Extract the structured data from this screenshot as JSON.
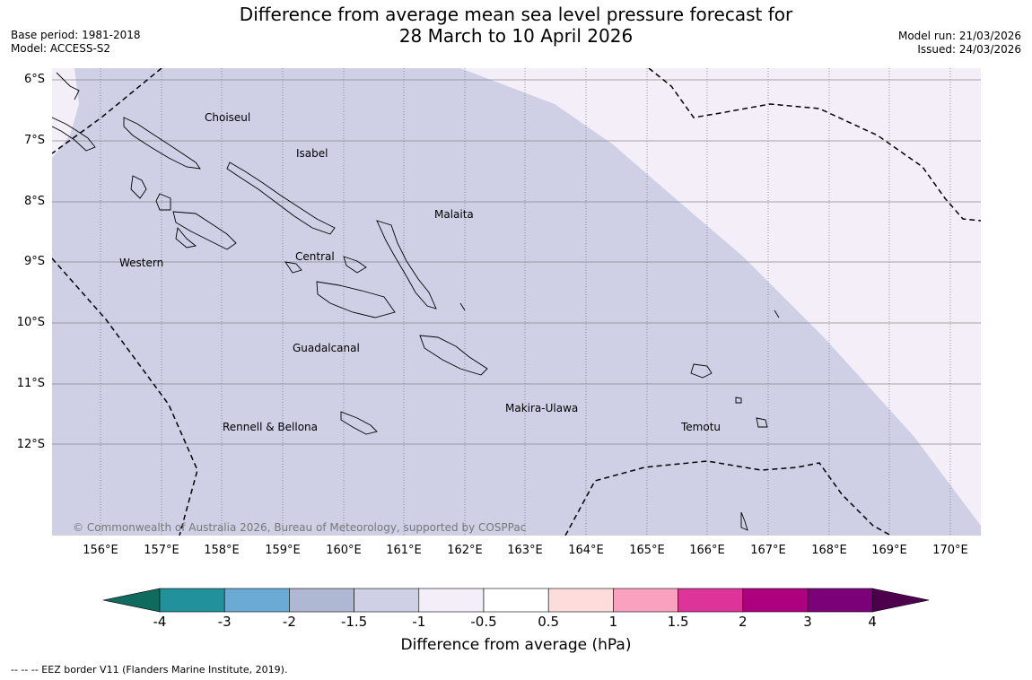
{
  "title_line1": "Difference from average mean sea level pressure forecast for",
  "title_line2": "28 March to 10 April 2026",
  "base_period": "Base period: 1981-2018",
  "model": "Model: ACCESS-S2",
  "model_run": "Model run: 21/03/2026",
  "issued": "Issued: 24/03/2026",
  "copyright": "© Commonwealth of Australia 2026, Bureau of Meteorology, supported by COSPPac",
  "lat_labels": [
    "6°S",
    "7°S",
    "8°S",
    "9°S",
    "10°S",
    "11°S",
    "12°S"
  ],
  "lon_labels": [
    "156°E",
    "157°E",
    "158°E",
    "159°E",
    "160°E",
    "161°E",
    "162°E",
    "163°E",
    "164°E",
    "165°E",
    "166°E",
    "167°E",
    "168°E",
    "169°E",
    "170°E"
  ],
  "provinces": [
    "Choiseul",
    "Isabel",
    "Malaita",
    "Western",
    "Central",
    "Guadalcanal",
    "Makira-Ulawa",
    "Rennell & Bellona",
    "Temotu"
  ],
  "colorbar": {
    "labels": [
      "-4",
      "-3",
      "-2",
      "-1.5",
      "-1",
      "-0.5",
      "0.5",
      "1",
      "1.5",
      "2",
      "3",
      "4"
    ],
    "colors": [
      "#0e6b5e",
      "#21929b",
      "#6aaad4",
      "#aeb8d2",
      "#cfd0e6",
      "#f3eef8",
      "#ffffff",
      "#fddcdc",
      "#f9a1bf",
      "#dc3498",
      "#ae0180",
      "#7a0177",
      "#4d004b"
    ],
    "xlabel": "Difference from average (hPa)"
  },
  "legend_note": "-- -- -- EEZ border V11 (Flanders Marine Institute, 2019)."
}
